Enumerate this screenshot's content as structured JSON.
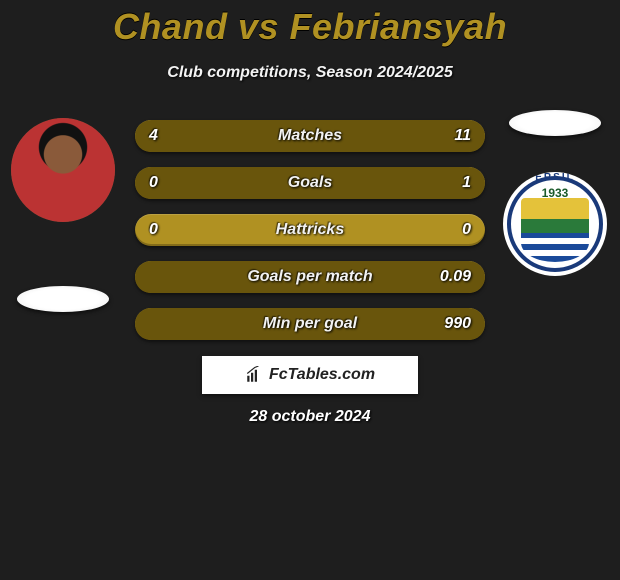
{
  "theme": {
    "accent": "#b09122",
    "accent_dark": "#69550c",
    "bg": "#1e1e1e"
  },
  "title": "Chand vs Febriansyah",
  "subtitle": "Club competitions, Season 2024/2025",
  "left": {
    "name": "Chand",
    "avatar_kind": "player-photo",
    "badge_text": "ERSIL",
    "badge_year": "1933"
  },
  "right": {
    "name": "Febriansyah",
    "avatar_kind": "club-crest",
    "badge_text": "ERSIL",
    "badge_year": "1933"
  },
  "stats": [
    {
      "name": "Matches",
      "l": "4",
      "r": "11",
      "l_pct": 27,
      "r_pct": 73
    },
    {
      "name": "Goals",
      "l": "0",
      "r": "1",
      "l_pct": 0,
      "r_pct": 100
    },
    {
      "name": "Hattricks",
      "l": "0",
      "r": "0",
      "l_pct": 0,
      "r_pct": 0
    },
    {
      "name": "Goals per match",
      "l": "",
      "r": "0.09",
      "l_pct": 0,
      "r_pct": 100
    },
    {
      "name": "Min per goal",
      "l": "",
      "r": "990",
      "l_pct": 0,
      "r_pct": 100
    }
  ],
  "footer_brand": "FcTables.com",
  "date": "28 october 2024"
}
